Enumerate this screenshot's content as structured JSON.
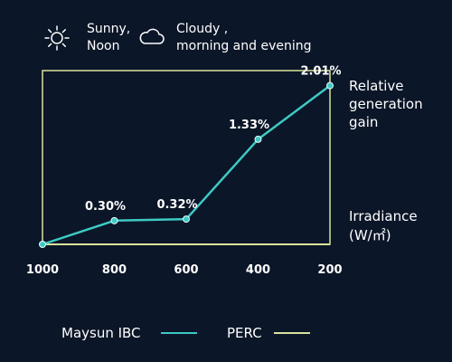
{
  "weather_legend": {
    "sunny_line1": "Sunny,",
    "sunny_line2": "Noon",
    "cloudy_line1": "Cloudy ,",
    "cloudy_line2": "morning and evening",
    "sun_icon": "sun-icon",
    "cloud_icon": "cloud-icon"
  },
  "chart_data": {
    "type": "line",
    "x": [
      1000,
      800,
      600,
      400,
      200
    ],
    "xlabel": "Irradiance (W/㎡)",
    "xlabel_line1": "Irradiance",
    "xlabel_line2": "(W/㎡)",
    "ylabel": "Relative generation gain",
    "ylabel_lines": [
      "Relative",
      "generation",
      "gain"
    ],
    "ylim": [
      0,
      2.2
    ],
    "x_reversed": true,
    "tick_labels": [
      "1000",
      "800",
      "600",
      "400",
      "200"
    ],
    "series": [
      {
        "name": "Maysun IBC",
        "color": "#3ec9c4",
        "values": [
          0,
          0.3,
          0.32,
          1.33,
          2.01
        ],
        "data_labels": [
          "",
          "0.30%",
          "0.32%",
          "1.33%",
          "2.01%"
        ]
      },
      {
        "name": "PERC",
        "color": "#d9e39b",
        "values": [
          0,
          0,
          0,
          0,
          0
        ]
      }
    ],
    "legend_position": "bottom",
    "grid": false
  },
  "colors": {
    "background": "#0b1628",
    "frame": "#d9e39b",
    "text": "#ffffff"
  }
}
